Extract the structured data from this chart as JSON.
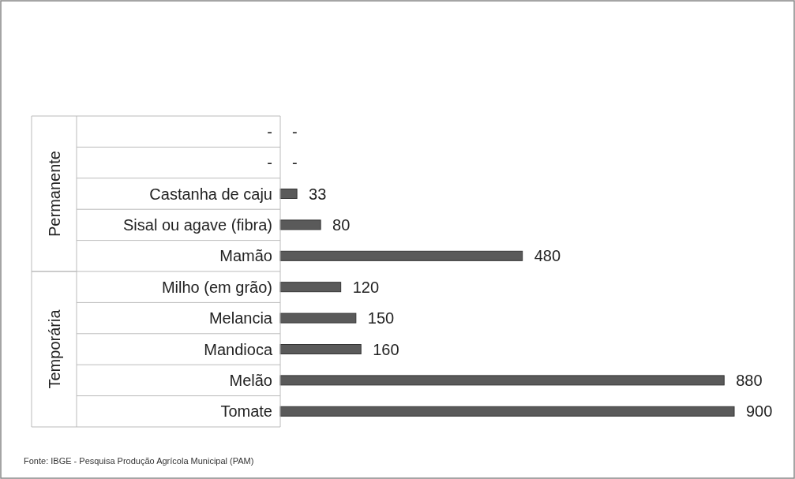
{
  "chart_data": {
    "type": "bar",
    "orientation": "horizontal",
    "categories": [
      "-",
      "-",
      "Castanha de caju",
      "Sisal ou agave (fibra)",
      "Mamão",
      "Milho (em grão)",
      "Melancia",
      "Mandioca",
      "Melão",
      "Tomate"
    ],
    "values": [
      null,
      null,
      33,
      80,
      480,
      120,
      150,
      160,
      880,
      900
    ],
    "value_labels": [
      "-",
      "-",
      "33",
      "80",
      "480",
      "120",
      "150",
      "160",
      "880",
      "900"
    ],
    "color": "#5a5a5a",
    "annotations": [
      "Permanente",
      "Temporária",
      "Fonte: IBGE - Pesquisa Produção Agrícola Municipal (PAM)"
    ]
  }
}
